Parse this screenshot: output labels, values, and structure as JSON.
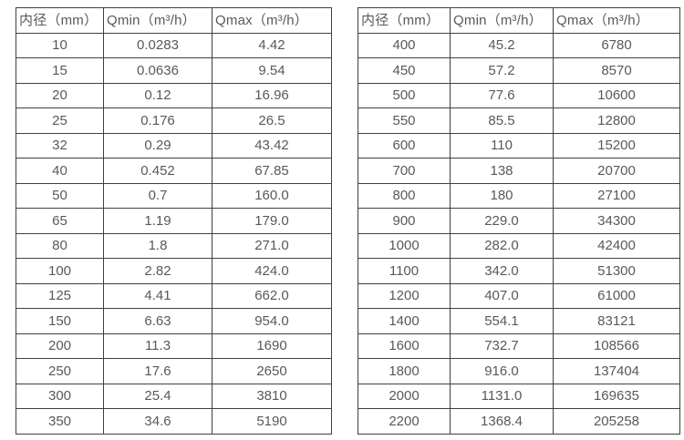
{
  "page": {
    "background_color": "#ffffff",
    "text_color": "#595959",
    "border_color": "#404040"
  },
  "tables": [
    {
      "name": "flow-rate-table-small-diameters",
      "headers": [
        "内径（mm）",
        "Qmin（m³/h）",
        "Qmax（m³/h）"
      ],
      "rows": [
        [
          "10",
          "0.0283",
          "4.42"
        ],
        [
          "15",
          "0.0636",
          "9.54"
        ],
        [
          "20",
          "0.12",
          "16.96"
        ],
        [
          "25",
          "0.176",
          "26.5"
        ],
        [
          "32",
          "0.29",
          "43.42"
        ],
        [
          "40",
          "0.452",
          "67.85"
        ],
        [
          "50",
          "0.7",
          "160.0"
        ],
        [
          "65",
          "1.19",
          "179.0"
        ],
        [
          "80",
          "1.8",
          "271.0"
        ],
        [
          "100",
          "2.82",
          "424.0"
        ],
        [
          "125",
          "4.41",
          "662.0"
        ],
        [
          "150",
          "6.63",
          "954.0"
        ],
        [
          "200",
          "11.3",
          "1690"
        ],
        [
          "250",
          "17.6",
          "2650"
        ],
        [
          "300",
          "25.4",
          "3810"
        ],
        [
          "350",
          "34.6",
          "5190"
        ]
      ]
    },
    {
      "name": "flow-rate-table-large-diameters",
      "headers": [
        "内径（mm）",
        "Qmin（m³/h）",
        "Qmax（m³/h）"
      ],
      "rows": [
        [
          "400",
          "45.2",
          "6780"
        ],
        [
          "450",
          "57.2",
          "8570"
        ],
        [
          "500",
          "77.6",
          "10600"
        ],
        [
          "550",
          "85.5",
          "12800"
        ],
        [
          "600",
          "110",
          "15200"
        ],
        [
          "700",
          "138",
          "20700"
        ],
        [
          "800",
          "180",
          "27100"
        ],
        [
          "900",
          "229.0",
          "34300"
        ],
        [
          "1000",
          "282.0",
          "42400"
        ],
        [
          "1100",
          "342.0",
          "51300"
        ],
        [
          "1200",
          "407.0",
          "61000"
        ],
        [
          "1400",
          "554.1",
          "83121"
        ],
        [
          "1600",
          "732.7",
          "108566"
        ],
        [
          "1800",
          "916.0",
          "137404"
        ],
        [
          "2000",
          "1131.0",
          "169635"
        ],
        [
          "2200",
          "1368.4",
          "205258"
        ]
      ]
    }
  ]
}
